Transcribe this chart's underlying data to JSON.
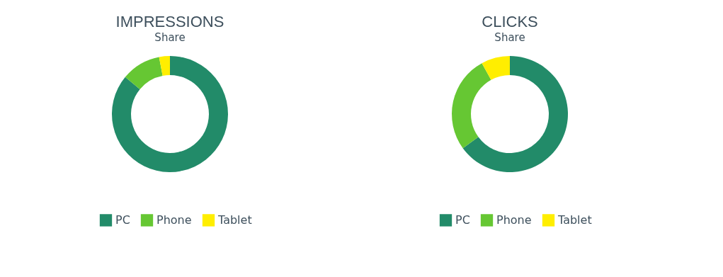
{
  "chart_data": [
    {
      "type": "donut",
      "title": "IMPRESSIONS",
      "subtitle": "Share",
      "categories": [
        "PC",
        "Phone",
        "Tablet"
      ],
      "values": [
        86,
        11,
        3
      ],
      "colors": [
        "#228b69",
        "#66c733",
        "#ffee00"
      ],
      "legend": "bottom"
    },
    {
      "type": "donut",
      "title": "CLICKS",
      "subtitle": "Share",
      "categories": [
        "PC",
        "Phone",
        "Tablet"
      ],
      "values": [
        65,
        27,
        8
      ],
      "colors": [
        "#228b69",
        "#66c733",
        "#ffee00"
      ],
      "legend": "bottom"
    }
  ]
}
